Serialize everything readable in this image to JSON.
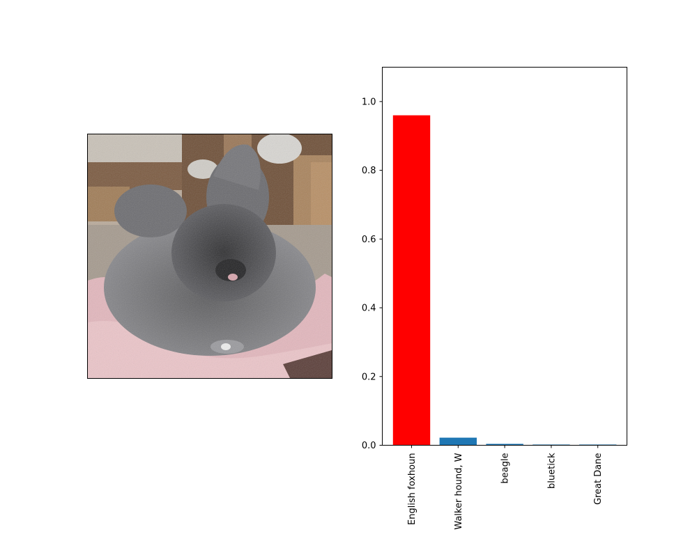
{
  "image": {
    "subject": "photo-of-fluffy-grey-angora-rabbit-on-pink-towel"
  },
  "chart_data": {
    "type": "bar",
    "categories": [
      "English foxhoun",
      "Walker hound, W",
      "beagle",
      "bluetick",
      "Great Dane"
    ],
    "values": [
      0.96,
      0.022,
      0.004,
      0.002,
      0.002
    ],
    "colors": [
      "#ff0000",
      "#1f77b4",
      "#1f77b4",
      "#1f77b4",
      "#1f77b4"
    ],
    "ylim": [
      0,
      1.1
    ],
    "yticks": [
      "0.0",
      "0.2",
      "0.4",
      "0.6",
      "0.8",
      "1.0"
    ],
    "ytick_values": [
      0.0,
      0.2,
      0.4,
      0.6,
      0.8,
      1.0
    ],
    "grid": false,
    "xtick_rotation": "vertical"
  }
}
